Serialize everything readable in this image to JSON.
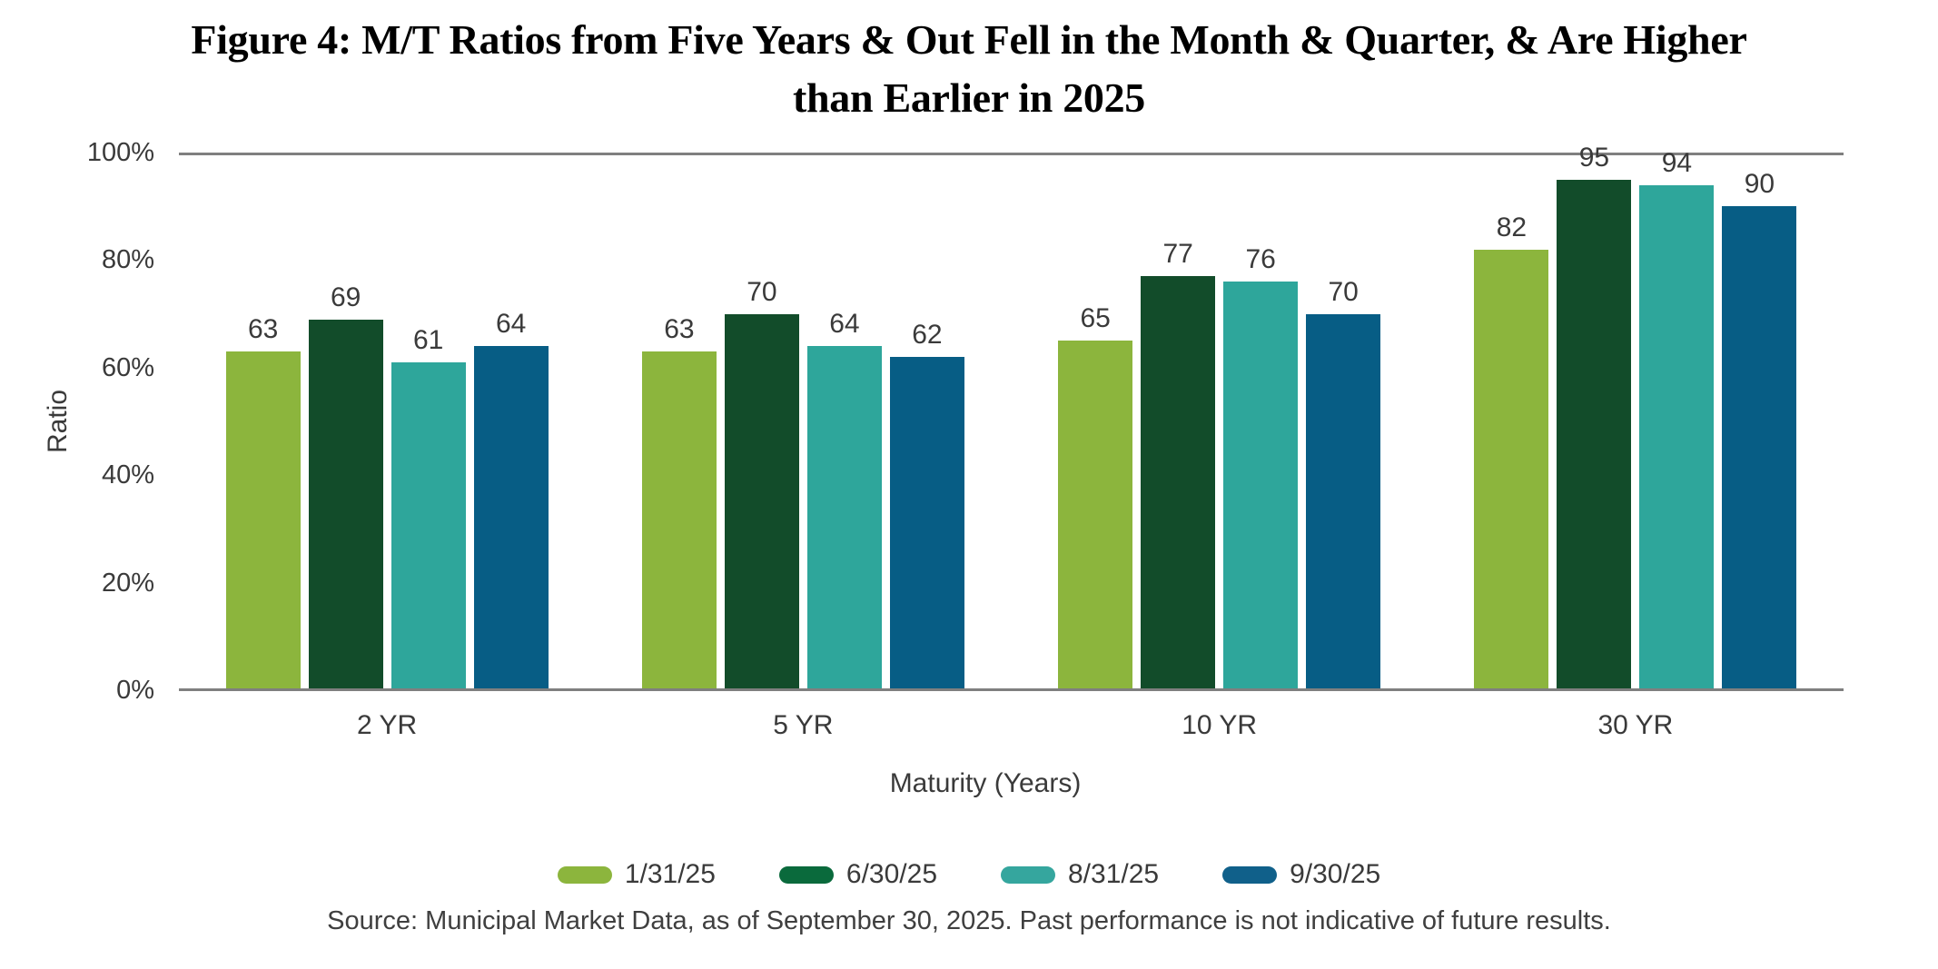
{
  "title": {
    "line1": "Figure 4: M/T Ratios from Five Years & Out Fell in the Month & Quarter, & Are Higher",
    "line2": "than Earlier in 2025"
  },
  "chart_data": {
    "type": "bar",
    "title": "Figure 4: M/T Ratios from Five Years & Out Fell in the Month & Quarter, & Are Higher than Earlier in 2025",
    "categories": [
      "2 YR",
      "5 YR",
      "10 YR",
      "30 YR"
    ],
    "series": [
      {
        "name": "1/31/25",
        "values": [
          63,
          63,
          65,
          82
        ],
        "color": "#8CB53D",
        "legend_color": "#8CB53D"
      },
      {
        "name": "6/30/25",
        "values": [
          69,
          70,
          77,
          95
        ],
        "color": "#124C2A",
        "legend_color": "#0A6A3C"
      },
      {
        "name": "8/31/25",
        "values": [
          61,
          64,
          76,
          94
        ],
        "color": "#2EA69B",
        "legend_color": "#35A69E"
      },
      {
        "name": "9/30/25",
        "values": [
          64,
          62,
          70,
          90
        ],
        "color": "#075D85",
        "legend_color": "#10608A"
      }
    ],
    "xlabel": "Maturity (Years)",
    "ylabel": "Ratio",
    "ylim": [
      0,
      100
    ],
    "yticks": [
      "0%",
      "20%",
      "40%",
      "60%",
      "80%",
      "100%"
    ],
    "grid": "lines at 100% (top) and 0% (baseline) only",
    "legend_position": "bottom",
    "bar_value_labels": true
  },
  "source_note": "Source: Municipal Market Data, as of September 30, 2025. Past performance is not indicative of future results.",
  "colors": {
    "label_text": "#3a3a3a",
    "title_text": "#000000",
    "axis_line": "#7f7f7f",
    "background": "#ffffff"
  }
}
